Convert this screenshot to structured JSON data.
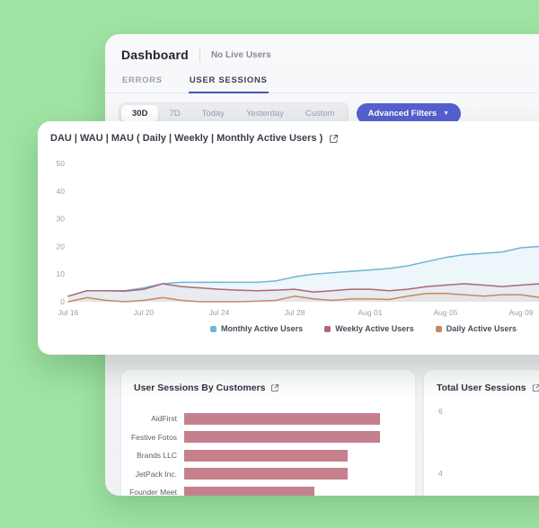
{
  "colors": {
    "page_background": "#9fe4a2",
    "accent_indigo": "#5560cf",
    "tab_underline": "#4a55bd",
    "mau_blue": "#6fb5d6",
    "wau_red": "#ac6876",
    "dau_orange": "#c38a62",
    "bar_rose": "#c5808e"
  },
  "header": {
    "title": "Dashboard",
    "live_status": "No Live Users"
  },
  "tabs": [
    {
      "label": "ERRORS",
      "active": false
    },
    {
      "label": "USER SESSIONS",
      "active": true
    }
  ],
  "filters": {
    "ranges": [
      "30D",
      "7D",
      "Today",
      "Yesterday",
      "Custom"
    ],
    "active_range": "30D",
    "advanced_label": "Advanced Filters"
  },
  "chart_data": [
    {
      "type": "line",
      "title": "DAU | WAU | MAU ( Daily | Weekly | Monthly Active Users )",
      "ylim": [
        0,
        50
      ],
      "yticks": [
        0,
        10,
        20,
        30,
        40,
        50
      ],
      "grid": false,
      "legend_position": "bottom",
      "xticks": [
        {
          "label": "Jul 16",
          "index": 0
        },
        {
          "label": "Jul 20",
          "index": 4
        },
        {
          "label": "Jul 24",
          "index": 8
        },
        {
          "label": "Jul 28",
          "index": 12
        },
        {
          "label": "Aug 01",
          "index": 16
        },
        {
          "label": "Aug 05",
          "index": 20
        },
        {
          "label": "Aug 09",
          "index": 24
        }
      ],
      "series": [
        {
          "name": "Monthly Active Users",
          "color": "#6fb5d6",
          "values": [
            2,
            4,
            4,
            4,
            5,
            6.5,
            7,
            7,
            7,
            7,
            7,
            7.5,
            9,
            10,
            10.5,
            11,
            11.5,
            12,
            13,
            14.5,
            16,
            17,
            17.5,
            18,
            19.5,
            20,
            20
          ]
        },
        {
          "name": "Weekly Active Users",
          "color": "#ac6876",
          "values": [
            2,
            4,
            4,
            3.8,
            4.5,
            6.5,
            5.5,
            5,
            4.5,
            4.2,
            4,
            4.2,
            4.5,
            3.5,
            4,
            4.5,
            4.5,
            4,
            4.5,
            5.5,
            6,
            6.5,
            6,
            5.5,
            6,
            6.5,
            7
          ]
        },
        {
          "name": "Daily Active Users",
          "color": "#c38a62",
          "values": [
            0,
            1.5,
            0.5,
            0,
            0.5,
            1.5,
            0.5,
            0,
            0,
            0,
            0.2,
            0.5,
            2,
            1,
            0.5,
            1,
            1,
            0.8,
            2,
            3,
            3,
            2.5,
            2,
            2.5,
            2.5,
            1.5,
            0.5
          ]
        }
      ]
    },
    {
      "type": "bar",
      "orientation": "horizontal",
      "title": "User Sessions By Customers",
      "categories": [
        "AidFirst",
        "Festive Fotos",
        "Brands LLC",
        "JetPack Inc.",
        "Founder Meet"
      ],
      "values": [
        6,
        6,
        5,
        5,
        4
      ],
      "xlim": [
        0,
        6
      ],
      "bar_color": "#c5808e"
    },
    {
      "type": "line",
      "title": "Total User Sessions",
      "visible_yticks": [
        "6",
        "4"
      ]
    }
  ]
}
